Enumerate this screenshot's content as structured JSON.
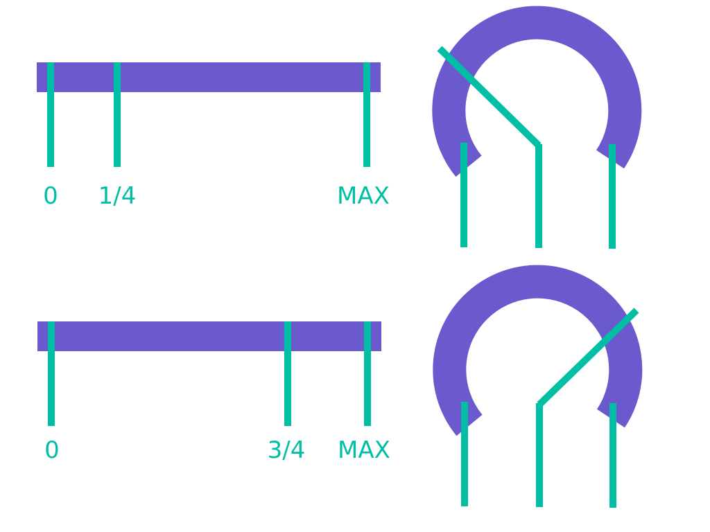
{
  "colors": {
    "track": "#6a5acd",
    "accent": "#00bfa5",
    "background": "#ffffff"
  },
  "rows": [
    {
      "linear": {
        "min_label": "0",
        "mid_label": "1/4",
        "max_label": "MAX",
        "wiper_fraction": 0.25
      },
      "rotary": {
        "wiper_fraction": 0.25
      }
    },
    {
      "linear": {
        "min_label": "0",
        "mid_label": "3/4",
        "max_label": "MAX",
        "wiper_fraction": 0.75
      },
      "rotary": {
        "wiper_fraction": 0.75
      }
    }
  ]
}
